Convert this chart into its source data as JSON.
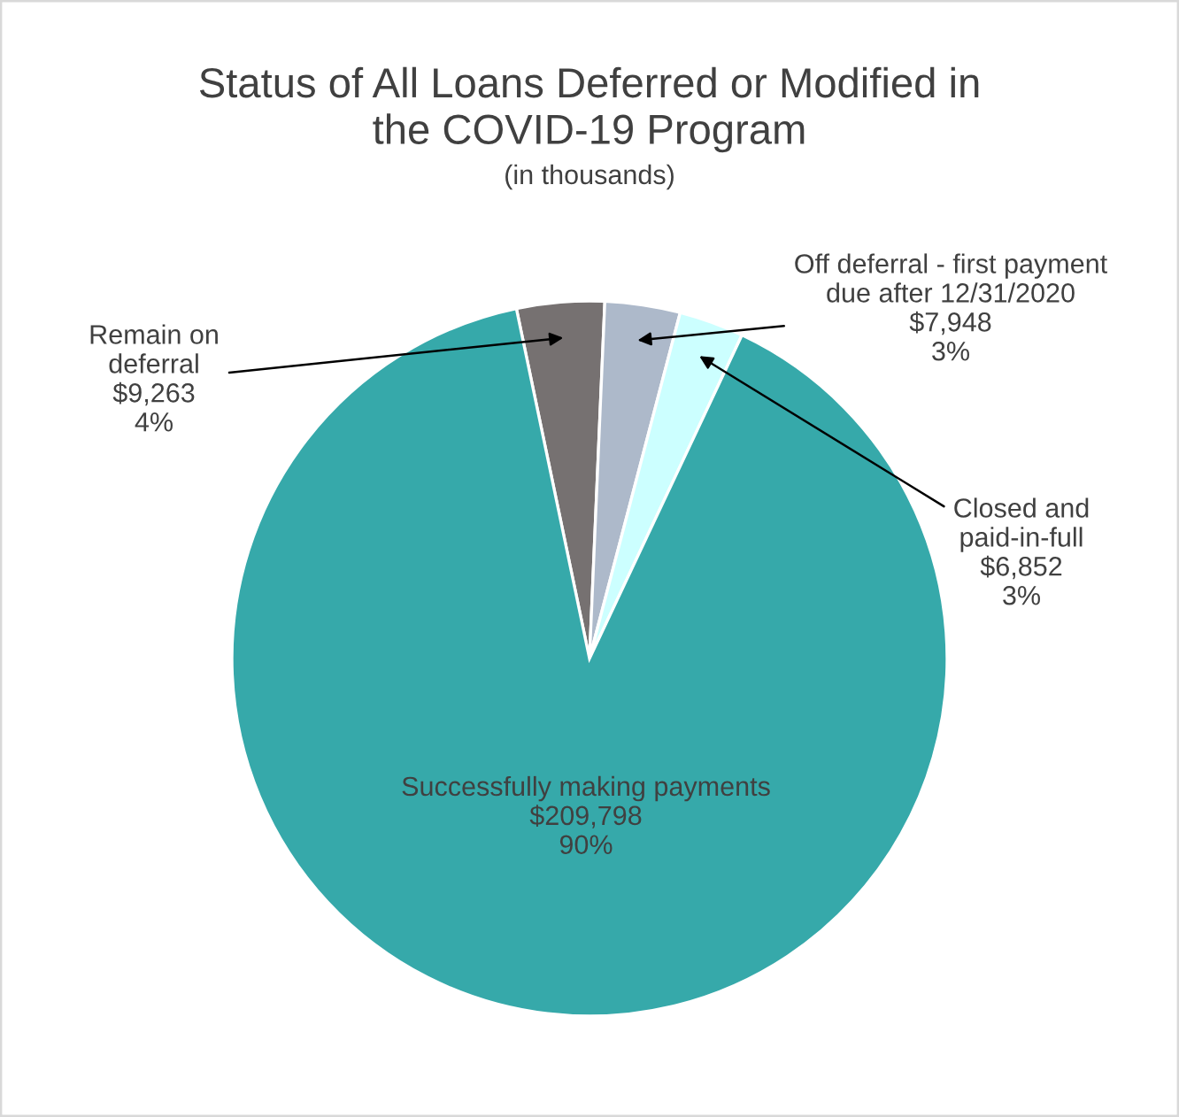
{
  "chart_data": {
    "type": "pie",
    "title": "Status of All Loans Deferred or Modified in\nthe COVID-19 Program",
    "subtitle": "(in thousands)",
    "categories": [
      "Remain on\ndeferral",
      "Off deferral - first payment\ndue after 12/31/2020",
      "Closed and\npaid-in-full",
      "Successfully making payments"
    ],
    "values": [
      9263,
      7948,
      6852,
      209798
    ],
    "colors": [
      "#767171",
      "#adb9ca",
      "#ccffff",
      "#36a9aa"
    ],
    "value_labels": [
      "$9,263\n4%",
      "$7,948\n3%",
      "$6,852\n3%",
      "$209,798\n90%"
    ],
    "legend": false
  }
}
